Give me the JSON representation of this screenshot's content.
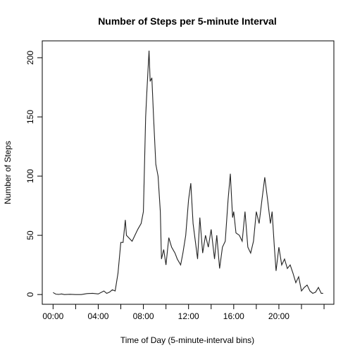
{
  "chart_data": {
    "type": "line",
    "title": "Number of Steps per 5-minute Interval",
    "x_label": "Time of Day (5-minute-interval bins)",
    "y_label": "Number of Steps",
    "x": [
      0,
      0.25,
      0.5,
      0.75,
      1,
      1.5,
      2,
      2.5,
      3,
      3.5,
      4,
      4.5,
      4.75,
      5,
      5.25,
      5.5,
      5.75,
      6,
      6.2,
      6.4,
      6.5,
      7,
      7.5,
      7.8,
      8,
      8.2,
      8.3,
      8.5,
      8.6,
      8.75,
      8.9,
      9.1,
      9.3,
      9.5,
      9.6,
      9.8,
      10,
      10.25,
      10.5,
      10.8,
      11,
      11.3,
      11.5,
      11.75,
      12,
      12.2,
      12.4,
      12.6,
      12.8,
      13,
      13.25,
      13.5,
      13.75,
      14,
      14.3,
      14.5,
      14.75,
      15,
      15.25,
      15.5,
      15.7,
      15.9,
      16,
      16.2,
      16.5,
      16.75,
      17,
      17.25,
      17.5,
      17.75,
      18,
      18.25,
      18.5,
      18.75,
      19,
      19.25,
      19.4,
      19.6,
      19.75,
      20,
      20.25,
      20.5,
      20.75,
      21,
      21.25,
      21.5,
      21.75,
      22,
      22.25,
      22.5,
      22.75,
      23,
      23.25,
      23.5,
      23.75,
      23.92
    ],
    "series": [
      {
        "name": "Number of Steps",
        "color": "#222222",
        "values": [
          1.7,
          0.3,
          0.1,
          0.5,
          0,
          0.2,
          0,
          0,
          0.8,
          1,
          0.5,
          3,
          1,
          2,
          4,
          3,
          18,
          44,
          44,
          63,
          50,
          45,
          55,
          60,
          70,
          150,
          170,
          206,
          180,
          183,
          150,
          110,
          100,
          70,
          30,
          38,
          25,
          48,
          40,
          35,
          30,
          25,
          35,
          50,
          80,
          94,
          60,
          45,
          30,
          65,
          35,
          50,
          40,
          55,
          30,
          50,
          22,
          40,
          45,
          80,
          102,
          65,
          70,
          52,
          50,
          45,
          70,
          40,
          35,
          45,
          70,
          60,
          80,
          99,
          80,
          60,
          70,
          40,
          20,
          40,
          25,
          30,
          22,
          25,
          18,
          10,
          15,
          3,
          6,
          8,
          3,
          1,
          2,
          6,
          1,
          1
        ]
      }
    ],
    "xlim": [
      -0.957,
      24.87
    ],
    "ylim": [
      -8.24,
      214.24
    ],
    "xticks": [
      {
        "value": 0,
        "label": "00:00"
      },
      {
        "value": 4,
        "label": "04:00"
      },
      {
        "value": 8,
        "label": "08:00"
      },
      {
        "value": 12,
        "label": "12:00"
      },
      {
        "value": 16,
        "label": "16:00"
      },
      {
        "value": 20,
        "label": "20:00"
      }
    ],
    "xminorticks": [
      2,
      6,
      10,
      14,
      18,
      22,
      24
    ],
    "yticks": [
      0,
      50,
      100,
      150,
      200
    ],
    "grid": false
  }
}
